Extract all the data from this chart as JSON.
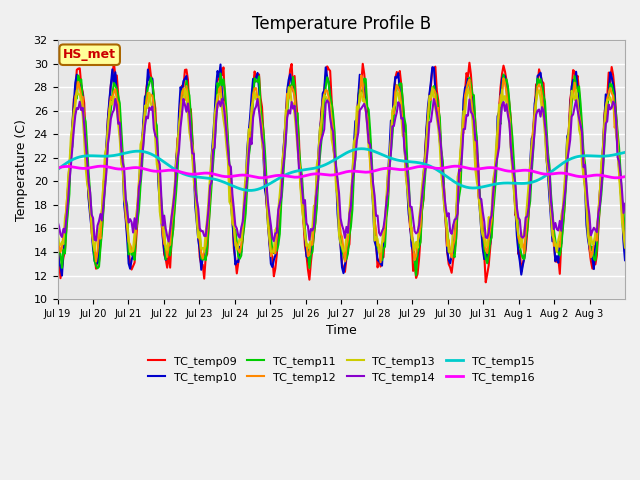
{
  "title": "Temperature Profile B",
  "xlabel": "Time",
  "ylabel": "Temperature (C)",
  "ylim": [
    10,
    32
  ],
  "yticks": [
    10,
    12,
    14,
    16,
    18,
    20,
    22,
    24,
    26,
    28,
    30,
    32
  ],
  "xtick_labels": [
    "Jul 19",
    "Jul 20",
    "Jul 21",
    "Jul 22",
    "Jul 23",
    "Jul 24",
    "Jul 25",
    "Jul 26",
    "Jul 27",
    "Jul 28",
    "Jul 29",
    "Jul 30",
    "Jul 31",
    "Aug 1",
    "Aug 2",
    "Aug 3"
  ],
  "n_xticks": 16,
  "bg_color": "#e8e8e8",
  "fig_bg_color": "#f0f0f0",
  "legend_entries": [
    "TC_temp09",
    "TC_temp10",
    "TC_temp11",
    "TC_temp12",
    "TC_temp13",
    "TC_temp14",
    "TC_temp15",
    "TC_temp16"
  ],
  "line_colors": [
    "#ff0000",
    "#0000cc",
    "#00cc00",
    "#ff8800",
    "#cccc00",
    "#8800cc",
    "#00cccc",
    "#ff00ff"
  ],
  "line_widths": [
    1.5,
    1.5,
    1.5,
    1.5,
    1.5,
    1.5,
    2.0,
    2.0
  ],
  "annotation_text": "HS_met",
  "annotation_color": "#cc0000",
  "annotation_bg": "#ffff99",
  "annotation_border": "#aa6600",
  "n_days": 16
}
